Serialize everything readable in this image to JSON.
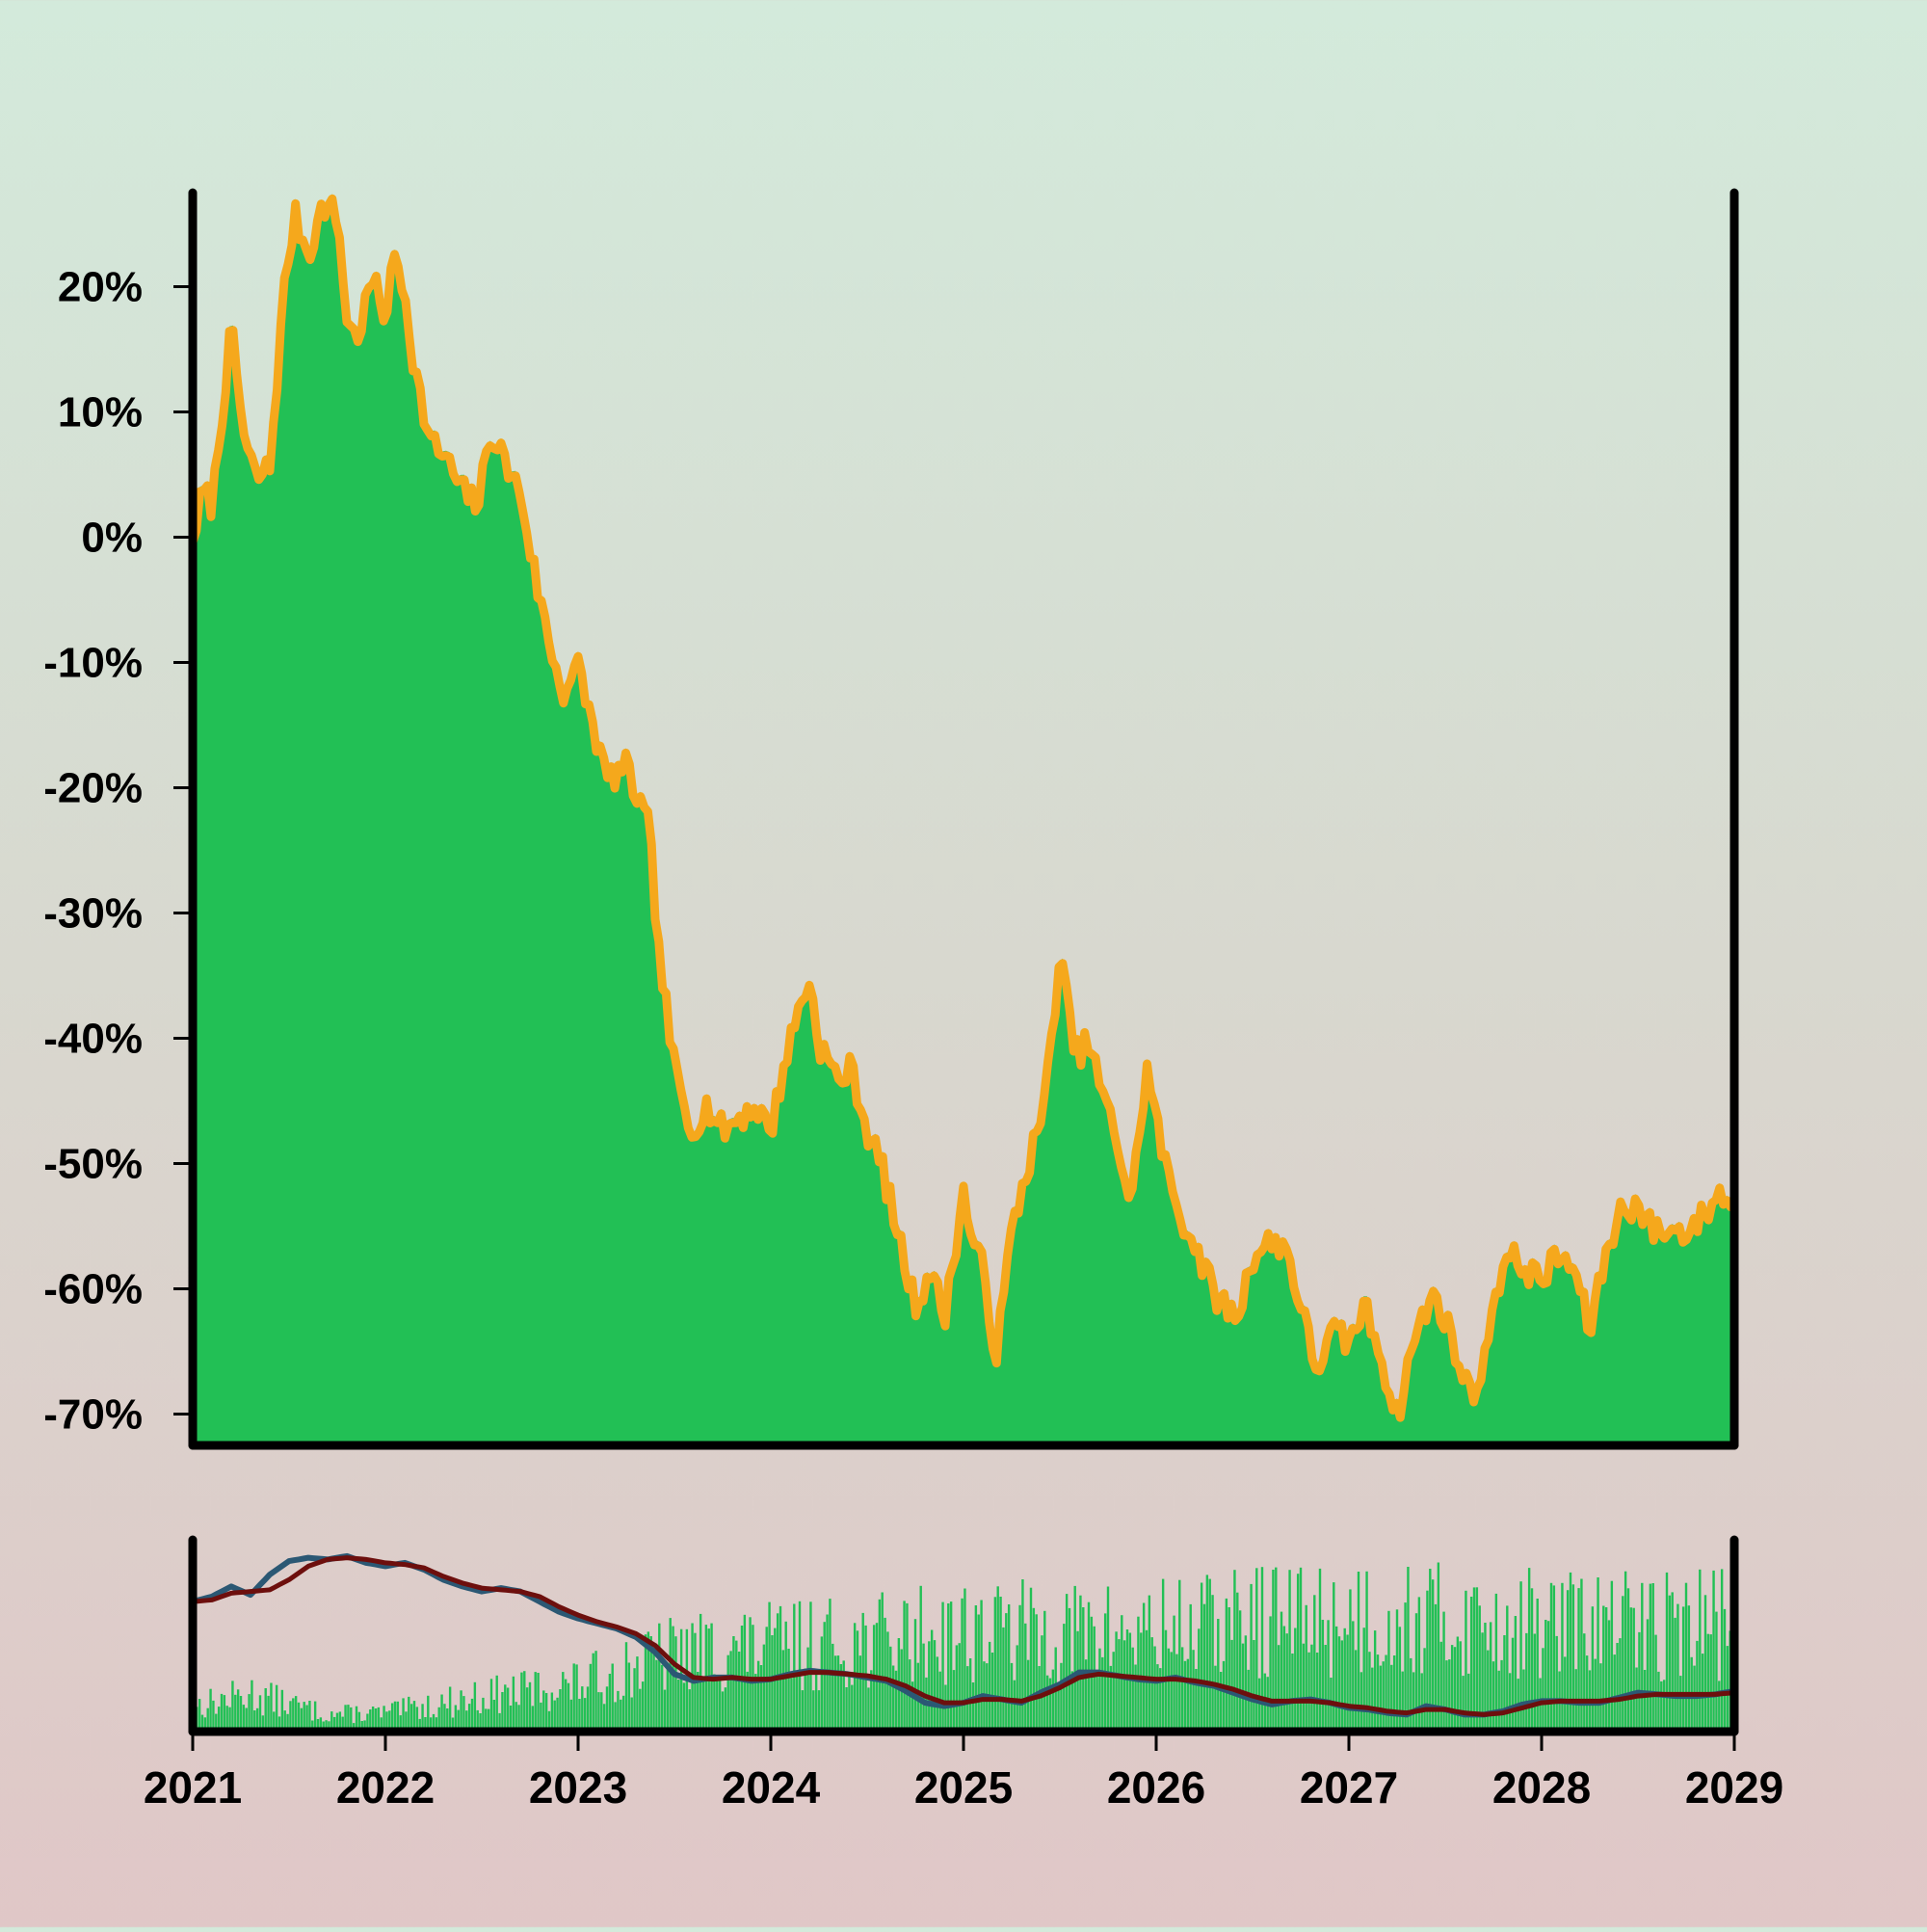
{
  "chart_data": [
    {
      "type": "area",
      "panel": "main",
      "y_tick_labels": [
        "20%",
        "10%",
        "0%",
        "-10%",
        "-20%",
        "-30%",
        "-40%",
        "-50%",
        "-60%",
        "-70%"
      ],
      "y_ticks": [
        20,
        10,
        0,
        -10,
        -20,
        -30,
        -40,
        -50,
        -60,
        -70
      ],
      "ylim": [
        -72.5,
        27.5
      ],
      "xlim": [
        2021,
        2029
      ],
      "grid": false,
      "fill_color": "#22c055",
      "band_color": "#f5a81c",
      "band_width": 2,
      "x": [
        2021.0,
        2021.05,
        2021.1,
        2021.2,
        2021.27,
        2021.33,
        2021.4,
        2021.48,
        2021.53,
        2021.6,
        2021.68,
        2021.75,
        2021.8,
        2021.85,
        2021.93,
        2022.0,
        2022.05,
        2022.1,
        2022.15,
        2022.23,
        2022.3,
        2022.4,
        2022.48,
        2022.55,
        2022.63,
        2022.7,
        2022.78,
        2022.85,
        2022.92,
        2023.0,
        2023.05,
        2023.1,
        2023.15,
        2023.25,
        2023.32,
        2023.37,
        2023.42,
        2023.5,
        2023.58,
        2023.67,
        2023.75,
        2023.83,
        2023.92,
        2024.0,
        2024.08,
        2024.15,
        2024.2,
        2024.25,
        2024.35,
        2024.42,
        2024.5,
        2024.58,
        2024.67,
        2024.75,
        2024.83,
        2024.9,
        2025.0,
        2025.05,
        2025.1,
        2025.17,
        2025.25,
        2025.33,
        2025.42,
        2025.5,
        2025.58,
        2025.65,
        2025.72,
        2025.8,
        2025.87,
        2025.95,
        2026.05,
        2026.13,
        2026.2,
        2026.3,
        2026.42,
        2026.5,
        2026.58,
        2026.67,
        2026.75,
        2026.83,
        2026.92,
        2027.0,
        2027.08,
        2027.15,
        2027.2,
        2027.25,
        2027.33,
        2027.38,
        2027.45,
        2027.52,
        2027.58,
        2027.63,
        2027.7,
        2027.75,
        2027.83,
        2027.92,
        2028.0,
        2028.08,
        2028.17,
        2028.25,
        2028.33,
        2028.42,
        2028.5,
        2028.58,
        2028.67,
        2028.75,
        2028.83,
        2028.92,
        2029.0
      ],
      "y": [
        0,
        4,
        3,
        17,
        8,
        5,
        6,
        21,
        26,
        23,
        27,
        26,
        18,
        16,
        21,
        18,
        23,
        20,
        14,
        8,
        7,
        4,
        3,
        9,
        6,
        4,
        -3,
        -8,
        -12,
        -10,
        -13,
        -16,
        -19,
        -18,
        -21,
        -23,
        -33,
        -42,
        -47,
        -45,
        -47,
        -46,
        -45,
        -47,
        -41,
        -37,
        -35,
        -40,
        -43,
        -42,
        -47,
        -50,
        -56,
        -61,
        -58,
        -62,
        -52,
        -56,
        -58,
        -65,
        -55,
        -50,
        -45,
        -33,
        -41,
        -40,
        -44,
        -48,
        -53,
        -42,
        -50,
        -54,
        -56,
        -60,
        -62,
        -57,
        -56,
        -56,
        -61,
        -66,
        -63,
        -64,
        -61,
        -64,
        -67,
        -70,
        -64,
        -62,
        -60,
        -63,
        -66,
        -68,
        -66,
        -60,
        -57,
        -58,
        -59,
        -57,
        -58,
        -63,
        -57,
        -53,
        -53,
        -55,
        -55,
        -55,
        -54,
        -52,
        -53
      ]
    },
    {
      "type": "bar",
      "panel": "sub",
      "bar_color": "#22c055",
      "xlim": [
        2021,
        2029
      ],
      "x_tick_labels": [
        "2021",
        "2022",
        "2023",
        "2024",
        "2025",
        "2026",
        "2027",
        "2028",
        "2029"
      ],
      "x_ticks": [
        2021,
        2022,
        2023,
        2024,
        2025,
        2026,
        2027,
        2028,
        2029
      ],
      "amplitude_profile_x": [
        2021.0,
        2021.3,
        2021.7,
        2022.0,
        2022.5,
        2023.0,
        2023.5,
        2024.0,
        2024.5,
        2025.0,
        2025.5,
        2026.0,
        2026.5,
        2027.0,
        2027.5,
        2028.0,
        2028.5,
        2029.0
      ],
      "amplitude_profile_y": [
        0.2,
        0.3,
        0.14,
        0.15,
        0.28,
        0.38,
        0.62,
        0.68,
        0.72,
        0.82,
        0.78,
        0.8,
        0.88,
        0.92,
        0.88,
        0.85,
        0.86,
        0.88
      ],
      "series": [
        {
          "kind": "line",
          "color": "#2b5874",
          "x": [
            2021.0,
            2021.1,
            2021.2,
            2021.3,
            2021.4,
            2021.5,
            2021.6,
            2021.7,
            2021.8,
            2021.9,
            2022.0,
            2022.1,
            2022.2,
            2022.3,
            2022.4,
            2022.5,
            2022.6,
            2022.7,
            2022.8,
            2022.9,
            2023.0,
            2023.1,
            2023.2,
            2023.3,
            2023.4,
            2023.5,
            2023.6,
            2023.7,
            2023.8,
            2023.9,
            2024.0,
            2024.1,
            2024.2,
            2024.3,
            2024.4,
            2024.5,
            2024.6,
            2024.7,
            2024.8,
            2024.9,
            2025.0,
            2025.1,
            2025.2,
            2025.3,
            2025.4,
            2025.5,
            2025.6,
            2025.7,
            2025.8,
            2025.9,
            2026.0,
            2026.1,
            2026.2,
            2026.3,
            2026.4,
            2026.5,
            2026.6,
            2026.7,
            2026.8,
            2026.9,
            2027.0,
            2027.1,
            2027.2,
            2027.3,
            2027.4,
            2027.5,
            2027.6,
            2027.7,
            2027.8,
            2027.9,
            2028.0,
            2028.1,
            2028.2,
            2028.3,
            2028.4,
            2028.5,
            2028.6,
            2028.7,
            2028.8,
            2028.9,
            2029.0
          ],
          "y": [
            0,
            3,
            9,
            4,
            16,
            24,
            26,
            25,
            27,
            23,
            21,
            23,
            19,
            13,
            9,
            6,
            8,
            6,
            0,
            -6,
            -10,
            -13,
            -16,
            -21,
            -30,
            -43,
            -47,
            -45,
            -45,
            -47,
            -46,
            -43,
            -41,
            -42,
            -43,
            -45,
            -47,
            -53,
            -60,
            -62,
            -60,
            -56,
            -58,
            -60,
            -54,
            -49,
            -42,
            -42,
            -44,
            -46,
            -47,
            -45,
            -48,
            -50,
            -54,
            -58,
            -61,
            -59,
            -58,
            -60,
            -63,
            -64,
            -66,
            -67,
            -62,
            -64,
            -67,
            -67,
            -65,
            -61,
            -59,
            -59,
            -60,
            -60,
            -57,
            -54,
            -55,
            -56,
            -56,
            -55,
            -53
          ]
        },
        {
          "kind": "line",
          "color": "#6d0f0d",
          "x": [
            2021.0,
            2021.1,
            2021.2,
            2021.3,
            2021.4,
            2021.5,
            2021.6,
            2021.7,
            2021.8,
            2021.9,
            2022.0,
            2022.1,
            2022.2,
            2022.3,
            2022.4,
            2022.5,
            2022.6,
            2022.7,
            2022.8,
            2022.9,
            2023.0,
            2023.1,
            2023.2,
            2023.3,
            2023.4,
            2023.5,
            2023.6,
            2023.7,
            2023.8,
            2023.9,
            2024.0,
            2024.1,
            2024.2,
            2024.3,
            2024.4,
            2024.5,
            2024.6,
            2024.7,
            2024.8,
            2024.9,
            2025.0,
            2025.1,
            2025.2,
            2025.3,
            2025.4,
            2025.5,
            2025.6,
            2025.7,
            2025.8,
            2025.9,
            2026.0,
            2026.1,
            2026.2,
            2026.3,
            2026.4,
            2026.5,
            2026.6,
            2026.7,
            2026.8,
            2026.9,
            2027.0,
            2027.1,
            2027.2,
            2027.3,
            2027.4,
            2027.5,
            2027.6,
            2027.7,
            2027.8,
            2027.9,
            2028.0,
            2028.1,
            2028.2,
            2028.3,
            2028.4,
            2028.5,
            2028.6,
            2028.7,
            2028.8,
            2028.9,
            2029.0
          ],
          "y": [
            0,
            1,
            5,
            6,
            7,
            13,
            21,
            25,
            26,
            25,
            23,
            22,
            20,
            15,
            11,
            8,
            7,
            6,
            3,
            -3,
            -8,
            -12,
            -15,
            -19,
            -26,
            -37,
            -45,
            -46,
            -45,
            -46,
            -46,
            -44,
            -42,
            -42,
            -43,
            -44,
            -46,
            -50,
            -56,
            -60,
            -60,
            -58,
            -58,
            -59,
            -56,
            -51,
            -45,
            -43,
            -44,
            -45,
            -46,
            -46,
            -47,
            -49,
            -52,
            -56,
            -59,
            -59,
            -59,
            -60,
            -62,
            -63,
            -65,
            -66,
            -64,
            -64,
            -66,
            -67,
            -66,
            -63,
            -60,
            -59,
            -59,
            -59,
            -58,
            -56,
            -55,
            -55,
            -55,
            -55,
            -54
          ]
        }
      ]
    }
  ]
}
